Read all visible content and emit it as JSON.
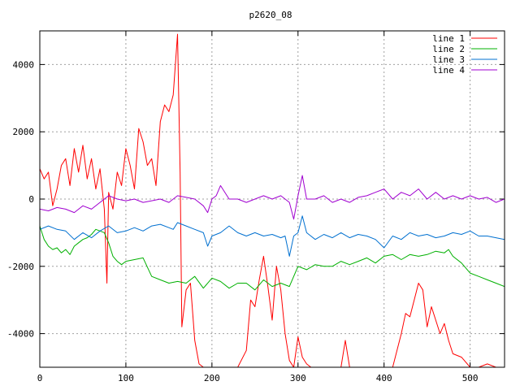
{
  "chart_data": {
    "type": "line",
    "title": "p2620_08",
    "xlabel": "",
    "ylabel": "",
    "xlim": [
      0,
      540
    ],
    "ylim": [
      -5000,
      5000
    ],
    "xticks": [
      0,
      100,
      200,
      300,
      400,
      500
    ],
    "yticks": [
      -4000,
      -2000,
      0,
      2000,
      4000
    ],
    "grid": true,
    "legend_position": "top-right",
    "series": [
      {
        "name": "line 1",
        "color": "#ff0000",
        "x": [
          0,
          5,
          10,
          15,
          20,
          25,
          30,
          35,
          40,
          45,
          50,
          55,
          60,
          65,
          70,
          75,
          78,
          80,
          85,
          90,
          95,
          100,
          105,
          110,
          115,
          120,
          125,
          130,
          135,
          140,
          145,
          150,
          155,
          160,
          163,
          165,
          170,
          175,
          180,
          185,
          190,
          195,
          200,
          210,
          220,
          230,
          240,
          245,
          250,
          255,
          260,
          265,
          270,
          275,
          280,
          285,
          290,
          295,
          300,
          305,
          310,
          315,
          320,
          325,
          330,
          335,
          340,
          345,
          350,
          355,
          360,
          365,
          370,
          380,
          390,
          400,
          410,
          420,
          425,
          430,
          435,
          440,
          445,
          450,
          455,
          460,
          465,
          470,
          475,
          480,
          490,
          500,
          510,
          520,
          530,
          540
        ],
        "y": [
          900,
          600,
          800,
          -200,
          300,
          1000,
          1200,
          400,
          1500,
          800,
          1600,
          600,
          1200,
          300,
          900,
          -300,
          -2500,
          200,
          -300,
          800,
          400,
          1500,
          1000,
          300,
          2100,
          1700,
          1000,
          1200,
          400,
          2300,
          2800,
          2600,
          3100,
          4900,
          800,
          -3800,
          -2700,
          -2500,
          -4200,
          -4900,
          -5000,
          -5000,
          -5000,
          -5000,
          -5000,
          -5000,
          -4500,
          -3000,
          -3200,
          -2400,
          -1700,
          -2600,
          -3600,
          -2000,
          -2700,
          -4000,
          -4800,
          -5000,
          -4100,
          -4700,
          -4900,
          -5000,
          -5000,
          -5000,
          -5000,
          -5000,
          -5000,
          -5000,
          -5000,
          -4200,
          -5000,
          -5000,
          -5000,
          -5000,
          -5000,
          -5000,
          -5000,
          -4000,
          -3400,
          -3500,
          -3000,
          -2500,
          -2700,
          -3800,
          -3200,
          -3600,
          -4000,
          -3700,
          -4200,
          -4600,
          -4700,
          -5000,
          -5000,
          -4900,
          -5000,
          -5000
        ]
      },
      {
        "name": "line 2",
        "color": "#00b000",
        "x": [
          0,
          5,
          10,
          15,
          20,
          25,
          30,
          35,
          40,
          45,
          50,
          55,
          60,
          65,
          70,
          75,
          80,
          85,
          90,
          95,
          100,
          110,
          120,
          130,
          140,
          150,
          160,
          170,
          180,
          190,
          200,
          210,
          220,
          230,
          240,
          250,
          260,
          270,
          280,
          290,
          300,
          310,
          320,
          330,
          340,
          350,
          360,
          370,
          380,
          390,
          400,
          410,
          420,
          430,
          440,
          450,
          460,
          470,
          475,
          480,
          490,
          500,
          510,
          520,
          530,
          540
        ],
        "y": [
          -800,
          -1200,
          -1400,
          -1500,
          -1450,
          -1600,
          -1500,
          -1650,
          -1400,
          -1300,
          -1200,
          -1150,
          -1050,
          -900,
          -950,
          -1000,
          -1300,
          -1700,
          -1850,
          -1950,
          -1850,
          -1800,
          -1750,
          -2300,
          -2400,
          -2500,
          -2450,
          -2500,
          -2300,
          -2650,
          -2350,
          -2450,
          -2650,
          -2500,
          -2500,
          -2700,
          -2400,
          -2600,
          -2500,
          -2600,
          -2000,
          -2100,
          -1950,
          -2000,
          -2000,
          -1850,
          -1950,
          -1850,
          -1750,
          -1900,
          -1700,
          -1650,
          -1800,
          -1650,
          -1700,
          -1650,
          -1550,
          -1600,
          -1500,
          -1700,
          -1900,
          -2200,
          -2300,
          -2400,
          -2500,
          -2600
        ]
      },
      {
        "name": "line 3",
        "color": "#0070d0",
        "x": [
          0,
          10,
          20,
          30,
          40,
          50,
          60,
          70,
          80,
          90,
          100,
          110,
          120,
          130,
          140,
          150,
          155,
          160,
          170,
          180,
          190,
          195,
          200,
          210,
          220,
          230,
          240,
          250,
          260,
          270,
          280,
          285,
          290,
          295,
          300,
          305,
          310,
          320,
          330,
          340,
          350,
          360,
          370,
          380,
          390,
          400,
          410,
          420,
          430,
          440,
          450,
          460,
          470,
          480,
          490,
          500,
          510,
          520,
          530,
          540
        ],
        "y": [
          -900,
          -800,
          -900,
          -950,
          -1200,
          -1000,
          -1150,
          -950,
          -800,
          -1000,
          -950,
          -850,
          -950,
          -800,
          -750,
          -850,
          -900,
          -700,
          -800,
          -900,
          -1000,
          -1400,
          -1100,
          -1000,
          -800,
          -1000,
          -1100,
          -1000,
          -1100,
          -1050,
          -1150,
          -1100,
          -1700,
          -1100,
          -1000,
          -500,
          -1000,
          -1200,
          -1050,
          -1150,
          -1000,
          -1150,
          -1050,
          -1100,
          -1200,
          -1450,
          -1100,
          -1200,
          -1000,
          -1100,
          -1050,
          -1150,
          -1100,
          -1000,
          -1050,
          -950,
          -1100,
          -1100,
          -1150,
          -1200
        ]
      },
      {
        "name": "line 4",
        "color": "#a000d0",
        "x": [
          0,
          10,
          20,
          30,
          40,
          50,
          60,
          70,
          80,
          90,
          100,
          110,
          120,
          130,
          140,
          150,
          160,
          170,
          180,
          190,
          195,
          200,
          205,
          210,
          220,
          230,
          240,
          250,
          260,
          270,
          280,
          290,
          295,
          300,
          305,
          310,
          320,
          330,
          340,
          350,
          360,
          370,
          380,
          390,
          400,
          410,
          420,
          430,
          440,
          450,
          460,
          470,
          480,
          490,
          500,
          510,
          520,
          530,
          540
        ],
        "y": [
          -300,
          -350,
          -250,
          -300,
          -400,
          -200,
          -300,
          -100,
          100,
          0,
          -50,
          0,
          -100,
          -50,
          0,
          -100,
          100,
          50,
          0,
          -200,
          -400,
          0,
          100,
          400,
          0,
          0,
          -100,
          0,
          100,
          0,
          100,
          -100,
          -600,
          100,
          700,
          0,
          0,
          100,
          -100,
          0,
          -100,
          50,
          100,
          200,
          300,
          0,
          200,
          100,
          300,
          0,
          200,
          0,
          100,
          0,
          100,
          0,
          50,
          -100,
          0
        ]
      }
    ]
  }
}
